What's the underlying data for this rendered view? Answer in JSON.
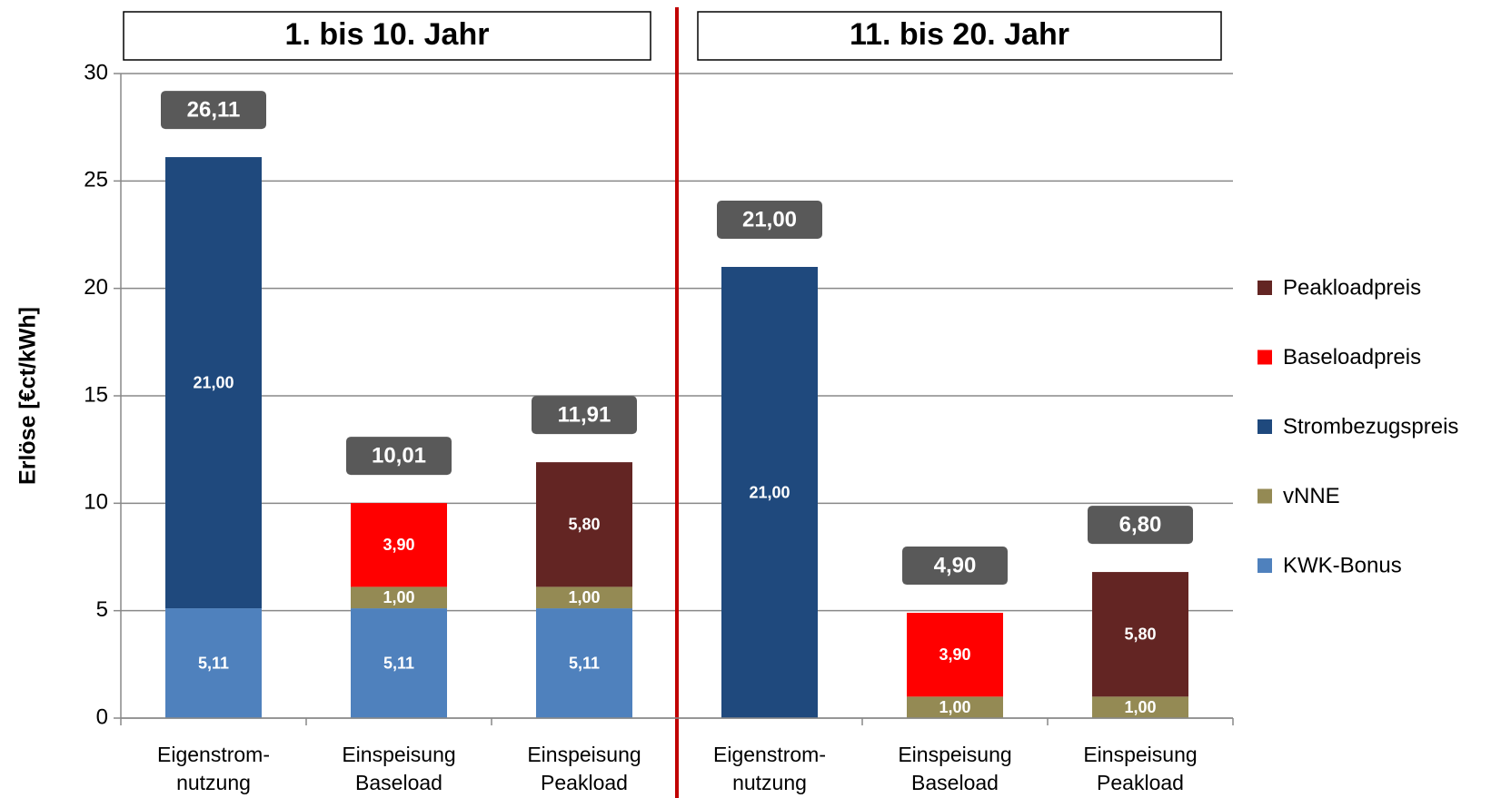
{
  "chart_data": {
    "type": "stacked_bar",
    "groups": [
      "1. bis 10. Jahr",
      "11. bis 20. Jahr"
    ],
    "ylabel": "Erlöse [€ct/kWh]",
    "categories": [
      [
        "Eigenstrom-",
        "nutzung"
      ],
      [
        "Einspeisung",
        "Baseload"
      ],
      [
        "Einspeisung",
        "Peakload"
      ],
      [
        "Eigenstrom-",
        "nutzung"
      ],
      [
        "Einspeisung",
        "Baseload"
      ],
      [
        "Einspeisung",
        "Peakload"
      ]
    ],
    "series": [
      {
        "name": "KWK-Bonus",
        "color": "#4f81bd",
        "values": [
          5.11,
          5.11,
          5.11,
          null,
          null,
          null
        ],
        "value_labels": [
          "5,11",
          "5,11",
          "5,11",
          null,
          null,
          null
        ]
      },
      {
        "name": "vNNE",
        "color": "#948a54",
        "values": [
          null,
          1.0,
          1.0,
          null,
          1.0,
          1.0
        ],
        "value_labels": [
          null,
          "1,00",
          "1,00",
          null,
          "1,00",
          "1,00"
        ]
      },
      {
        "name": "Strombezugspreis",
        "color": "#1f497d",
        "values": [
          21.0,
          null,
          null,
          21.0,
          null,
          null
        ],
        "value_labels": [
          "21,00",
          null,
          null,
          "21,00",
          null,
          null
        ]
      },
      {
        "name": "Baseloadpreis",
        "color": "#ff0000",
        "values": [
          null,
          3.9,
          null,
          null,
          3.9,
          null
        ],
        "value_labels": [
          null,
          "3,90",
          null,
          null,
          "3,90",
          null
        ]
      },
      {
        "name": "Peakloadpreis",
        "color": "#632523",
        "values": [
          null,
          null,
          5.8,
          null,
          null,
          5.8
        ],
        "value_labels": [
          null,
          null,
          "5,80",
          null,
          null,
          "5,80"
        ]
      }
    ],
    "totals": [
      26.11,
      10.01,
      11.91,
      21.0,
      4.9,
      6.8
    ],
    "total_labels": [
      "26,11",
      "10,01",
      "11,91",
      "21,00",
      "4,90",
      "6,80"
    ],
    "ylim": [
      0,
      30
    ],
    "yticks": [
      0,
      5,
      10,
      15,
      20,
      25,
      30
    ],
    "grid": true
  }
}
